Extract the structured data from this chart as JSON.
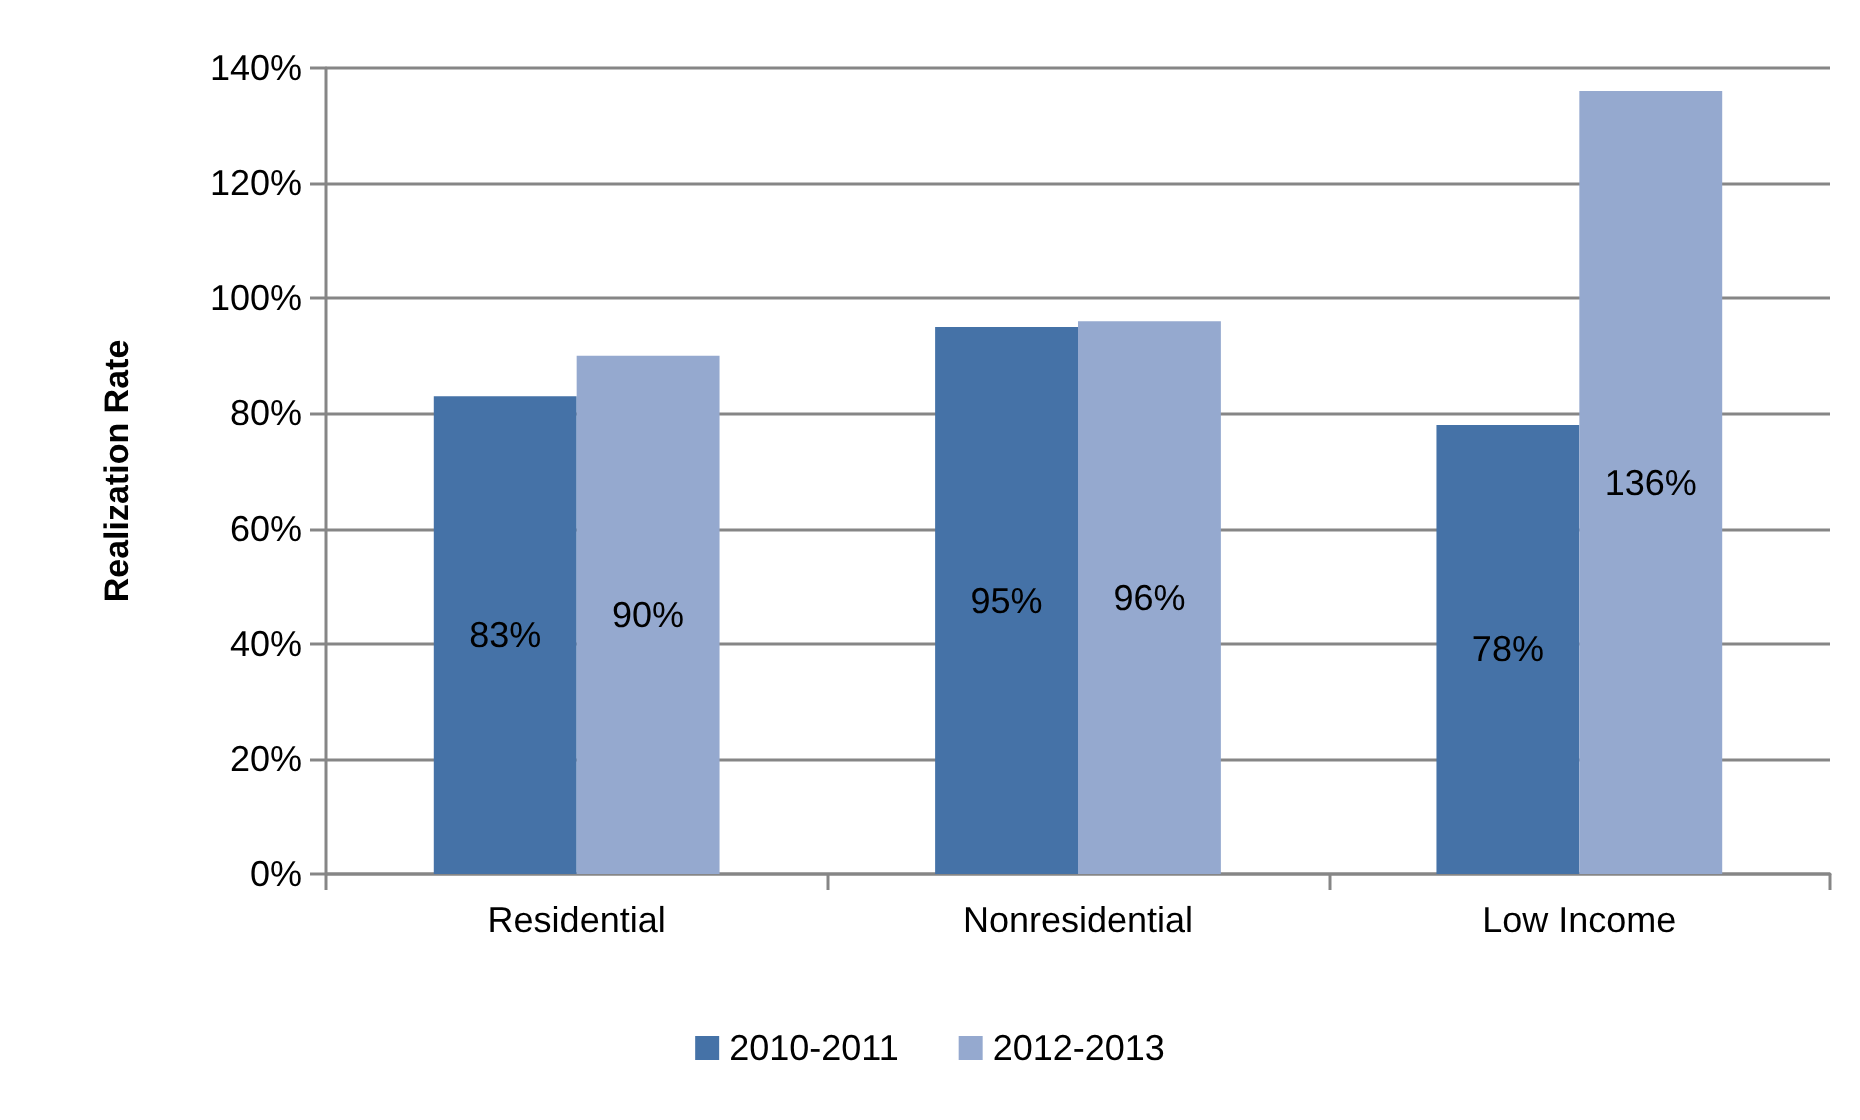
{
  "chart_data": {
    "type": "bar",
    "ylabel": "Realization Rate",
    "categories": [
      "Residential",
      "Nonresidential",
      "Low Income"
    ],
    "series": [
      {
        "name": "2010-2011",
        "color": "#4572a7",
        "values": [
          83,
          95,
          78
        ],
        "value_labels": [
          "83%",
          "95%",
          "78%"
        ]
      },
      {
        "name": "2012-2013",
        "color": "#95a9cf",
        "values": [
          90,
          96,
          136
        ],
        "value_labels": [
          "90%",
          "96%",
          "136%"
        ]
      }
    ],
    "ylim": [
      0,
      140
    ],
    "yticks": [
      {
        "value": 0,
        "label": "0%"
      },
      {
        "value": 20,
        "label": "20%"
      },
      {
        "value": 40,
        "label": "40%"
      },
      {
        "value": 60,
        "label": "60%"
      },
      {
        "value": 80,
        "label": "80%"
      },
      {
        "value": 100,
        "label": "100%"
      },
      {
        "value": 120,
        "label": "120%"
      },
      {
        "value": 140,
        "label": "140%"
      }
    ],
    "grid": "y",
    "legend": "bottom"
  }
}
